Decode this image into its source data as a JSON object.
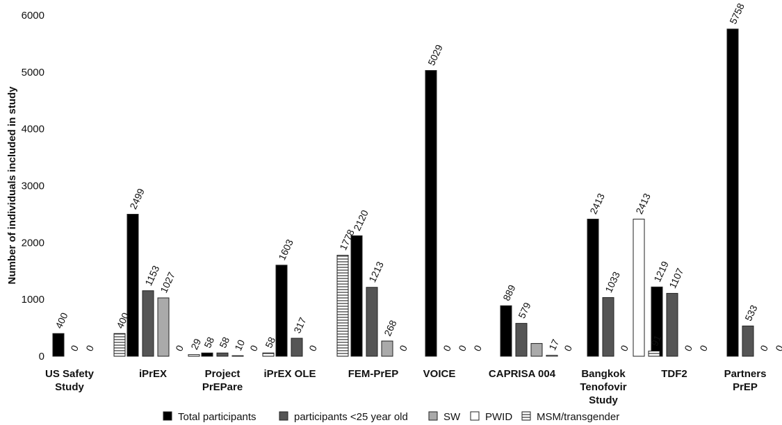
{
  "chart_data": {
    "type": "bar",
    "ylabel": "Number of individuals included in study",
    "ylim": [
      0,
      6000
    ],
    "yticks": [
      0,
      1000,
      2000,
      3000,
      4000,
      5000,
      6000
    ],
    "grid": false,
    "legend_position": "bottom",
    "categories": [
      [
        "US Safety",
        "Study"
      ],
      [
        "iPrEX"
      ],
      [
        "Project",
        "PrEPare"
      ],
      [
        "iPrEX OLE"
      ],
      [
        "FEM-PrEP"
      ],
      [
        "VOICE"
      ],
      [
        "CAPRISA 004"
      ],
      [
        "Bangkok",
        "Tenofovir",
        "Study"
      ],
      [
        "TDF2"
      ],
      [
        "Partners",
        "PrEP"
      ]
    ],
    "series": [
      {
        "name": "Total participants",
        "color": "#000000",
        "pattern": "solid",
        "values": [
          400,
          2499,
          58,
          1603,
          2120,
          5029,
          889,
          2413,
          1219,
          5758
        ],
        "labels": [
          "400",
          "2499",
          "58",
          "1603",
          "2120",
          "5029",
          "889",
          "2413",
          "1219",
          "5758"
        ]
      },
      {
        "name": "participants <25 year old",
        "color": "#555555",
        "pattern": "solid",
        "values": [
          0,
          1153,
          58,
          317,
          1213,
          null,
          579,
          1033,
          1107,
          533
        ],
        "labels": [
          "0",
          "1153",
          "58",
          "317",
          "1213",
          "0",
          "579",
          "1033",
          "1107",
          "533"
        ]
      },
      {
        "name": "SW",
        "color": "#aaaaaa",
        "pattern": "solid",
        "values": [
          0,
          1027,
          10,
          0,
          268,
          null,
          225,
          0,
          0,
          0
        ],
        "labels": [
          "0",
          "1027",
          "10",
          "0",
          "268",
          "0",
          "",
          "0",
          "0",
          "0"
        ]
      },
      {
        "name": "PWID",
        "color": "#ffffff",
        "pattern": "solid",
        "values": [
          null,
          0,
          0,
          null,
          0,
          0,
          17,
          2413,
          0,
          0
        ],
        "labels": [
          "",
          "0",
          "0",
          "",
          "0",
          "0",
          "17",
          "2413",
          "0",
          "0"
        ]
      },
      {
        "name": "MSM/transgender",
        "color": "#ffffff",
        "pattern": "hstripe",
        "values": [
          400,
          29,
          58,
          1778,
          null,
          null,
          0,
          91,
          null,
          null
        ],
        "labels": [
          "400",
          "29",
          "58",
          "1778",
          "",
          "",
          "0",
          "91",
          "",
          ""
        ]
      }
    ]
  }
}
